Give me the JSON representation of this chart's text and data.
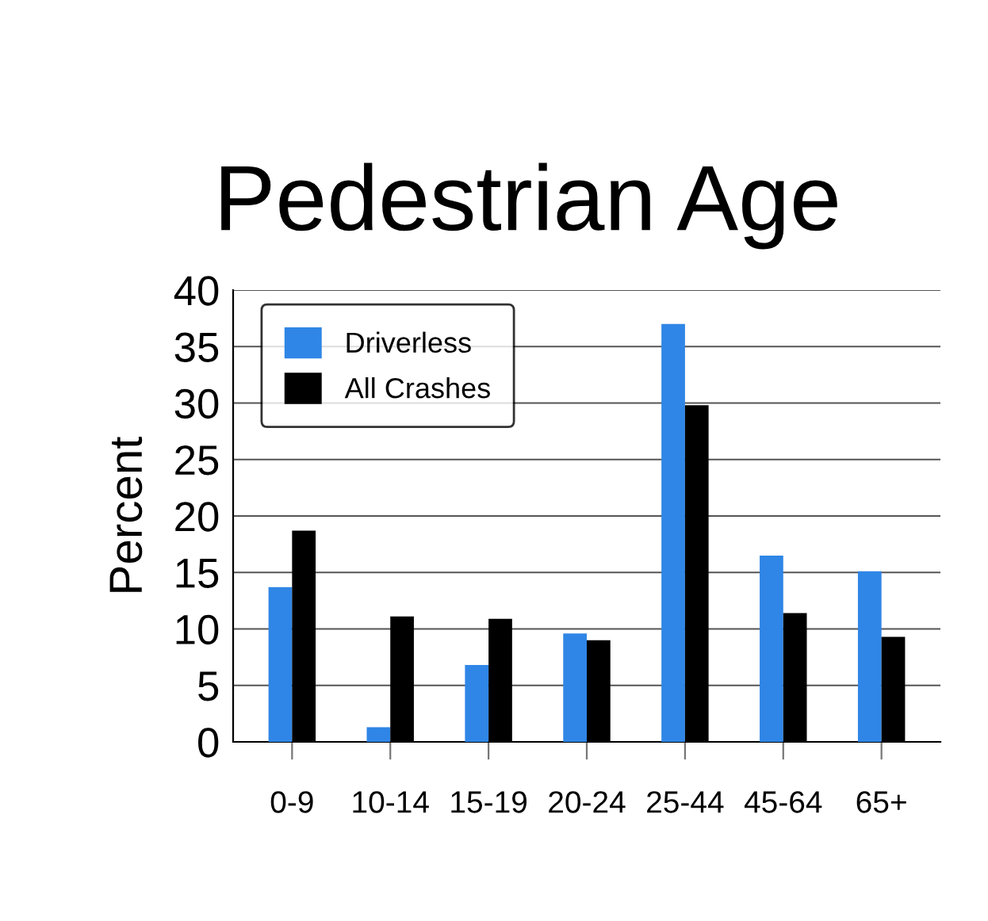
{
  "chart_data": {
    "type": "bar",
    "title": "Pedestrian Age",
    "ylabel": "Percent",
    "categories": [
      "0-9",
      "10-14",
      "15-19",
      "20-24",
      "25-44",
      "45-64",
      "65+"
    ],
    "series": [
      {
        "name": "Driverless",
        "color": "#2f86e6",
        "values": [
          13.7,
          1.3,
          6.8,
          9.6,
          37.0,
          16.5,
          15.1
        ]
      },
      {
        "name": "All Crashes",
        "color": "#000000",
        "values": [
          18.7,
          11.1,
          10.9,
          9.0,
          29.8,
          11.4,
          9.3
        ]
      }
    ],
    "ylim": [
      0,
      40
    ],
    "yticks": [
      0,
      5,
      10,
      15,
      20,
      25,
      30,
      35,
      40
    ],
    "grid": "y",
    "legend": "top left"
  }
}
